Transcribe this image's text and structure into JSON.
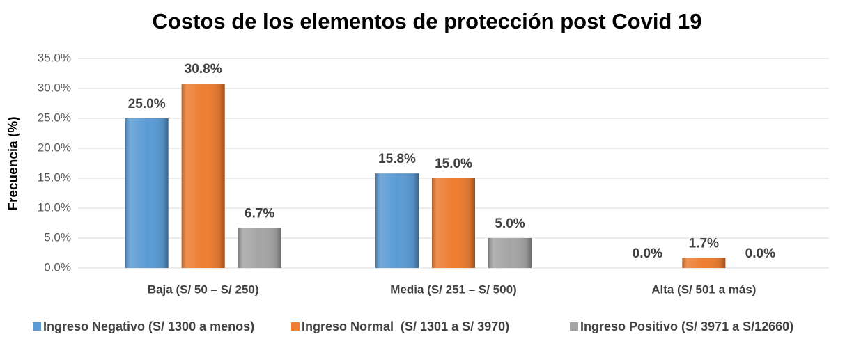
{
  "chart_data": {
    "type": "bar",
    "title": "Costos de los elementos de protección post Covid 19",
    "y_label": "Frecuencia (%)",
    "categories": [
      "Baja (S/ 50 – S/ 250)",
      "Media (S/ 251 – S/ 500)",
      "Alta (S/ 501 a más)"
    ],
    "series": [
      {
        "name": "Ingreso Negativo (S/ 1300 a menos)",
        "color": "#5b9bd5",
        "values": [
          25.0,
          15.8,
          0.0
        ],
        "value_labels": [
          "25.0%",
          "15.8%",
          "0.0%"
        ]
      },
      {
        "name": "Ingreso Normal  (S/ 1301 a S/ 3970)",
        "color": "#ed7d31",
        "values": [
          30.8,
          15.0,
          1.7
        ],
        "value_labels": [
          "30.8%",
          "15.0%",
          "1.7%"
        ]
      },
      {
        "name": "Ingreso Positivo (S/ 3971 a S/12660)",
        "color": "#a5a5a5",
        "values": [
          6.7,
          5.0,
          0.0
        ],
        "value_labels": [
          "6.7%",
          "5.0%",
          "0.0%"
        ]
      }
    ],
    "ylim": [
      0,
      35
    ],
    "yticks": [
      {
        "value": 0,
        "label": "0.0%"
      },
      {
        "value": 5,
        "label": "5.0%"
      },
      {
        "value": 10,
        "label": "10.0%"
      },
      {
        "value": 15,
        "label": "15.0%"
      },
      {
        "value": 20,
        "label": "20.0%"
      },
      {
        "value": 25,
        "label": "25.0%"
      },
      {
        "value": 30,
        "label": "30.0%"
      },
      {
        "value": 35,
        "label": "35.0%"
      }
    ],
    "grid": true
  }
}
